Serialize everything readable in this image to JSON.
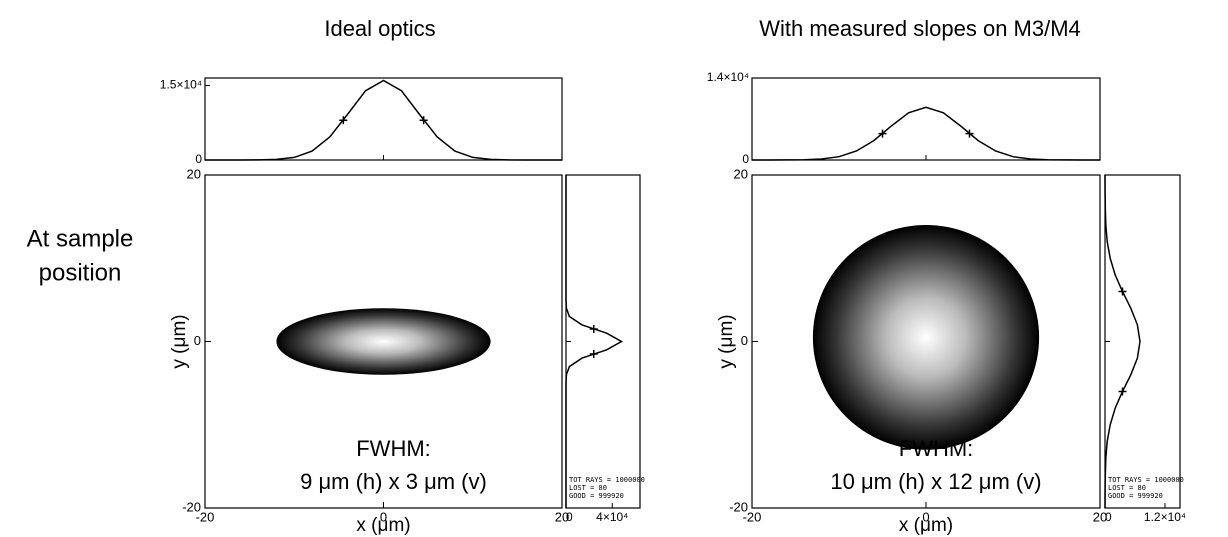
{
  "row_label": [
    "At sample",
    "position"
  ],
  "chart_data": [
    {
      "type": "beam-profile",
      "title": "Ideal optics",
      "x_label": "x (μm)",
      "y_label": "y (μm)",
      "xlim": [
        -20,
        20
      ],
      "ylim": [
        -20,
        20
      ],
      "xticks": [
        -20,
        0,
        20
      ],
      "yticks": [
        -20,
        0,
        20
      ],
      "spot": {
        "x": [
          -12,
          12
        ],
        "y": [
          -4,
          4
        ]
      },
      "annotation": [
        "FWHM:",
        "9 μm (h) x 3 μm (v)"
      ],
      "x_profile": {
        "x": [
          -20,
          -18,
          -16,
          -14,
          -12,
          -10,
          -8,
          -6,
          -4,
          -2,
          0,
          2,
          4,
          6,
          8,
          10,
          12,
          14,
          16,
          18,
          20
        ],
        "values": [
          0,
          0,
          0,
          19,
          115,
          520,
          1790,
          4660,
          9250,
          13950,
          16000,
          13950,
          9250,
          4660,
          1790,
          520,
          115,
          19,
          0,
          0,
          0
        ],
        "ylim": [
          0,
          16500
        ],
        "yticks": [
          0,
          {
            "value": 15000,
            "label": "1.5×10⁴"
          }
        ],
        "markers": {
          "x": [
            -4.5,
            4.5
          ],
          "values": [
            8000,
            8000
          ]
        }
      },
      "y_profile": {
        "y": [
          -20,
          -6,
          -5,
          -4,
          -3,
          -2,
          -1,
          0,
          1,
          2,
          3,
          4,
          5,
          6,
          20
        ],
        "values": [
          0,
          0,
          20,
          340,
          2980,
          13960,
          35200,
          48000,
          35200,
          13960,
          2980,
          340,
          20,
          0,
          0
        ],
        "xlim": [
          0,
          64000
        ],
        "xticks": [
          0,
          {
            "value": 40000,
            "label": "4×10⁴"
          }
        ],
        "markers": {
          "y": [
            -1.5,
            1.5
          ],
          "values": [
            24000,
            24000
          ]
        },
        "stats": [
          "TOT RAYS = 1000000",
          "LOST =           80",
          "GOOD =      999920"
        ]
      }
    },
    {
      "type": "beam-profile",
      "title": "With measured slopes on M3/M4",
      "x_label": "x (μm)",
      "y_label": "y (μm)",
      "xlim": [
        -20,
        20
      ],
      "ylim": [
        -20,
        20
      ],
      "xticks": [
        -20,
        0,
        20
      ],
      "yticks": [
        -20,
        0,
        20
      ],
      "spot": {
        "x": [
          -13,
          13
        ],
        "y": [
          -13,
          14
        ]
      },
      "annotation": [
        "FWHM:",
        "10 μm (h) x 12 μm (v)"
      ],
      "x_profile": {
        "x": [
          -20,
          -18,
          -16,
          -14,
          -12,
          -10,
          -8,
          -6,
          -4,
          -2,
          0,
          2,
          4,
          6,
          8,
          10,
          12,
          14,
          16,
          18,
          20
        ],
        "values": [
          0,
          0,
          10,
          40,
          170,
          570,
          1530,
          3320,
          5780,
          8050,
          9000,
          8050,
          5780,
          3320,
          1530,
          570,
          170,
          40,
          10,
          0,
          0
        ],
        "ylim": [
          0,
          14000
        ],
        "yticks": [
          0,
          {
            "value": 14000,
            "label": "1.4×10⁴"
          }
        ],
        "markers": {
          "x": [
            -5,
            5
          ],
          "values": [
            4500,
            4500
          ]
        }
      },
      "y_profile": {
        "y": [
          -20,
          -18,
          -16,
          -14,
          -12,
          -10,
          -8,
          -6,
          -4,
          -2,
          0,
          2,
          4,
          6,
          8,
          10,
          12,
          14,
          16,
          18,
          20
        ],
        "values": [
          0,
          14,
          50,
          160,
          440,
          1030,
          2040,
          3500,
          5150,
          6480,
          7000,
          6480,
          5150,
          3500,
          2040,
          1030,
          440,
          160,
          50,
          14,
          0
        ],
        "xlim": [
          0,
          15000
        ],
        "xticks": [
          0,
          {
            "value": 12000,
            "label": "1.2×10⁴"
          }
        ],
        "markers": {
          "y": [
            -6,
            6
          ],
          "values": [
            3500,
            3500
          ]
        },
        "stats": [
          "TOT RAYS = 1000000",
          "LOST =           80",
          "GOOD =      999920"
        ]
      }
    }
  ]
}
